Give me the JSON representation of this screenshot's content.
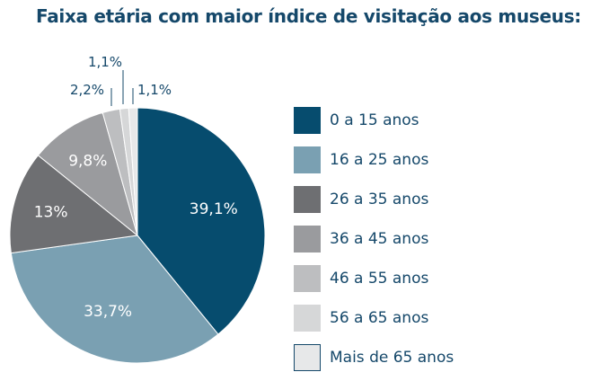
{
  "chart_data": {
    "type": "pie",
    "title": "Faixa etária com maior índice de visitação aos museus:",
    "slices": [
      {
        "label": "0 a 15 anos",
        "value": 39.1,
        "display": "39,1%",
        "color": "#064c6e"
      },
      {
        "label": "16 a 25 anos",
        "value": 33.7,
        "display": "33,7%",
        "color": "#7aa0b2"
      },
      {
        "label": "26 a 35 anos",
        "value": 13.0,
        "display": "13%",
        "color": "#6e6f72"
      },
      {
        "label": "36 a 45 anos",
        "value": 9.8,
        "display": "9,8%",
        "color": "#9a9b9e"
      },
      {
        "label": "46 a 55 anos",
        "value": 2.2,
        "display": "2,2%",
        "color": "#bdbec0"
      },
      {
        "label": "56 a 65 anos",
        "value": 1.1,
        "display": "1,1%",
        "color": "#d6d7d8"
      },
      {
        "label": "Mais de 65 anos",
        "value": 1.1,
        "display": "1,1%",
        "color": "#e7e8e9"
      }
    ],
    "legend_position": "right"
  }
}
